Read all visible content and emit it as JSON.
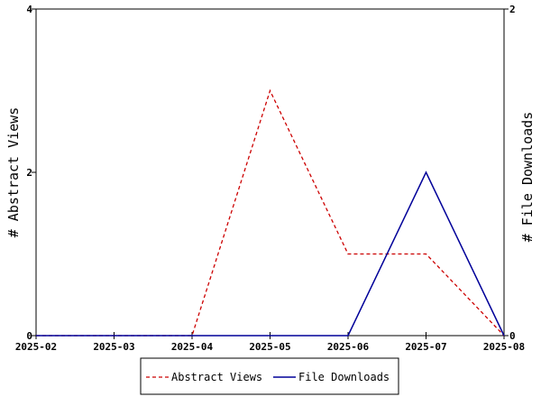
{
  "chart_data": {
    "type": "line",
    "categories": [
      "2025-02",
      "2025-03",
      "2025-04",
      "2025-05",
      "2025-06",
      "2025-07",
      "2025-08"
    ],
    "series": [
      {
        "name": "Abstract Views",
        "axis": "left",
        "values": [
          0,
          0,
          0,
          3,
          1,
          1,
          0
        ],
        "color": "#cc0000",
        "style": "dashed"
      },
      {
        "name": "File Downloads",
        "axis": "right",
        "values": [
          0,
          0,
          0,
          0,
          0,
          1,
          0
        ],
        "color": "#000099",
        "style": "solid"
      }
    ],
    "ylabel": "# Abstract Views",
    "y2label": "# File Downloads",
    "ylim": [
      0,
      4
    ],
    "y2lim": [
      0,
      2
    ],
    "yticks": [
      0,
      2,
      4
    ],
    "y2ticks": [
      0,
      2
    ],
    "legend_position": "bottom-center",
    "grid": false
  }
}
